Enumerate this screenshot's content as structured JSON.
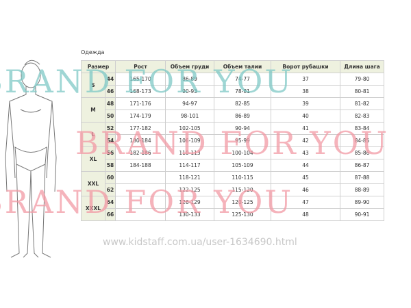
{
  "caption": "Одежда",
  "headers": [
    "Размер",
    "Рост",
    "Объем груди",
    "Объем талии",
    "Ворот рубашки",
    "Длина шага"
  ],
  "groups": [
    "S",
    "M",
    "L",
    "XL",
    "XXL",
    "XXXL"
  ],
  "rows": [
    [
      "44",
      "165-170",
      "86-89",
      "74-77",
      "37",
      "79-80"
    ],
    [
      "46",
      "168-173",
      "90-93",
      "78-81",
      "38",
      "80-81"
    ],
    [
      "48",
      "171-176",
      "94-97",
      "82-85",
      "39",
      "81-82"
    ],
    [
      "50",
      "174-179",
      "98-101",
      "86-89",
      "40",
      "82-83"
    ],
    [
      "52",
      "177-182",
      "102-105",
      "90-94",
      "41",
      "83-84"
    ],
    [
      "54",
      "180-184",
      "106-109",
      "95-99",
      "42",
      "84-85"
    ],
    [
      "56",
      "182-186",
      "110-113",
      "100-104",
      "43",
      "85-86"
    ],
    [
      "58",
      "184-188",
      "114-117",
      "105-109",
      "44",
      "86-87"
    ],
    [
      "60",
      "",
      "118-121",
      "110-115",
      "45",
      "87-88"
    ],
    [
      "62",
      "",
      "122-125",
      "115-120",
      "46",
      "88-89"
    ],
    [
      "64",
      "",
      "126-129",
      "120-125",
      "47",
      "89-90"
    ],
    [
      "66",
      "",
      "130-133",
      "125-130",
      "48",
      "90-91"
    ]
  ],
  "watermark": "BRAND FOR YOU",
  "watermark_colors": [
    "#7fc9c6",
    "#f29aa5"
  ],
  "url": "www.kidstaff.com.ua/user-1634690.html"
}
